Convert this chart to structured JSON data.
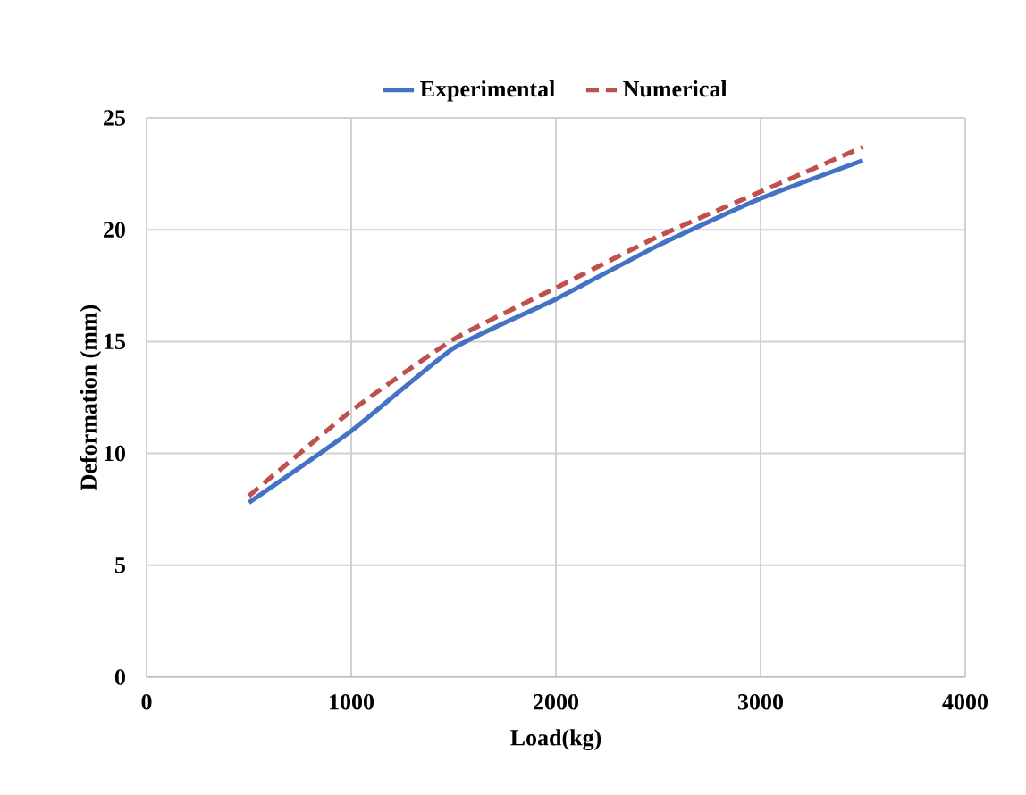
{
  "chart_data": {
    "type": "line",
    "xlabel": "Load(kg)",
    "ylabel": "Deformation (mm)",
    "x": [
      500,
      1000,
      1500,
      2000,
      2500,
      3000,
      3500
    ],
    "series": [
      {
        "name": "Experimental",
        "color": "#4472c4",
        "line_style": "solid",
        "values": [
          7.8,
          11.0,
          14.7,
          16.9,
          19.3,
          21.4,
          23.1
        ]
      },
      {
        "name": "Numerical",
        "color": "#c0504d",
        "line_style": "dashed",
        "values": [
          8.1,
          11.9,
          15.1,
          17.4,
          19.7,
          21.7,
          23.7
        ]
      }
    ],
    "xlim": [
      0,
      4000
    ],
    "xticks": [
      0,
      1000,
      2000,
      3000,
      4000
    ],
    "ylim": [
      0,
      25
    ],
    "yticks": [
      0,
      5,
      10,
      15,
      20,
      25
    ],
    "grid": true,
    "legend": "top",
    "marker": "none"
  }
}
